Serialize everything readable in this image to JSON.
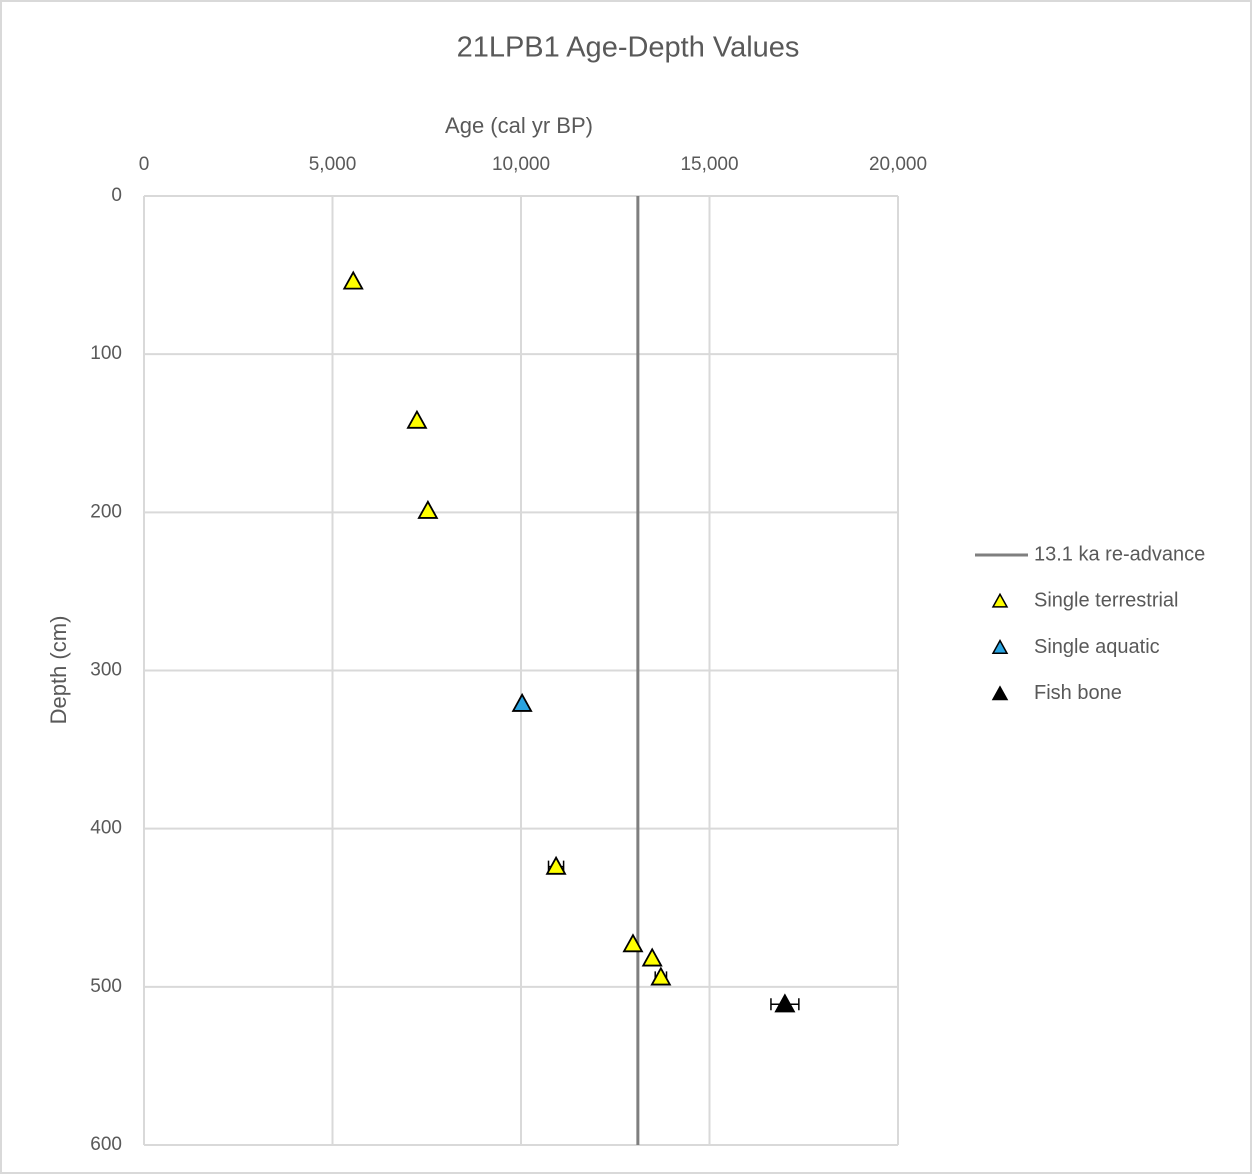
{
  "chart_data": {
    "type": "scatter",
    "title": "21LPB1 Age-Depth Values",
    "x_label": "Age (cal yr BP)",
    "y_label": "Depth (cm)",
    "xlim": [
      0,
      20000
    ],
    "xticks": [
      0,
      {
        "value": 5000,
        "label": "5,000"
      },
      {
        "value": 10000,
        "label": "10,000"
      },
      {
        "value": 15000,
        "label": "15,000"
      },
      {
        "value": 20000,
        "label": "20,000"
      }
    ],
    "ylim": [
      0,
      600
    ],
    "yticks": [
      0,
      100,
      200,
      300,
      400,
      500,
      600
    ],
    "y_inverted": true,
    "x_axis_position": "top",
    "grid": true,
    "legend": "right",
    "series": [
      {
        "name": "13.1 ka re-advance",
        "type": "line",
        "color": "#7f7f7f",
        "x": [
          13100,
          13100
        ],
        "values": [
          0,
          600
        ]
      },
      {
        "name": "Single terrestrial",
        "type": "scatter",
        "color": "#ffff00",
        "x": [
          5550,
          7240,
          7530,
          10930,
          12970,
          13480,
          13710
        ],
        "values": [
          54,
          142,
          199,
          424,
          473,
          482,
          494
        ],
        "errors": [
          null,
          null,
          null,
          200,
          null,
          null,
          150
        ]
      },
      {
        "name": "Single aquatic",
        "type": "scatter",
        "color": "#29a3e0",
        "x": [
          10030
        ],
        "values": [
          321
        ]
      },
      {
        "name": "Fish bone",
        "type": "scatter",
        "color": "#000000",
        "x": [
          17000
        ],
        "values": [
          511
        ],
        "errors": [
          370
        ]
      }
    ]
  }
}
